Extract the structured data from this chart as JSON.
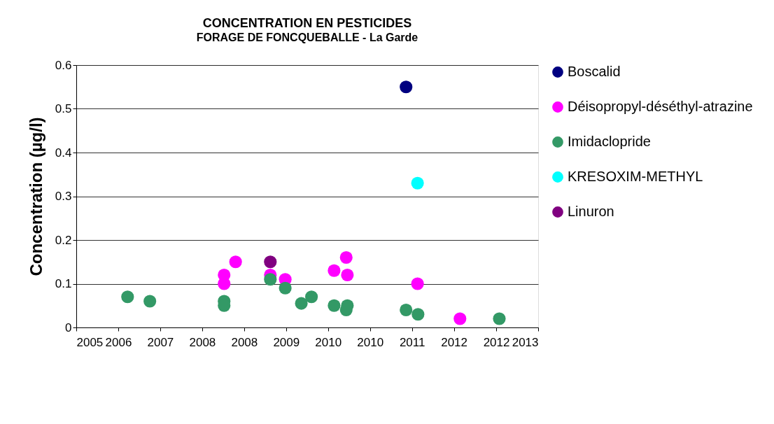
{
  "chart_data": {
    "type": "scatter",
    "title": "CONCENTRATION EN PESTICIDES",
    "subtitle": "FORAGE DE FONCQUEBALLE - La Garde",
    "ylabel": "Concentration (µg/l)",
    "xlim": [
      "2005-11-25",
      "2013-08-13"
    ],
    "xticks": [
      {
        "value": "2005-11-25",
        "label": "2005"
      },
      {
        "value": "2006-08-08",
        "label": "2006"
      },
      {
        "value": "2007-04-21",
        "label": "2007"
      },
      {
        "value": "2008-01-02",
        "label": "2008"
      },
      {
        "value": "2008-09-14",
        "label": "2008"
      },
      {
        "value": "2009-05-28",
        "label": "2009"
      },
      {
        "value": "2010-02-08",
        "label": "2010"
      },
      {
        "value": "2010-10-22",
        "label": "2010"
      },
      {
        "value": "2011-07-05",
        "label": "2011"
      },
      {
        "value": "2012-03-17",
        "label": "2012"
      },
      {
        "value": "2012-11-30",
        "label": "2012"
      },
      {
        "value": "2013-08-13",
        "label": "2013"
      }
    ],
    "ylim": [
      0,
      0.6
    ],
    "yticks": [
      0,
      0.1,
      0.2,
      0.3,
      0.4,
      0.5,
      0.6
    ],
    "grid": "y",
    "legend": "right",
    "marker": "circle",
    "series": [
      {
        "name": "Boscalid",
        "color": "#000080",
        "x": [
          "2011-05-30"
        ],
        "values": [
          0.55
        ]
      },
      {
        "name": "Déisopropyl-déséthyl-atrazine",
        "color": "#ff00ff",
        "x": [
          "2008-05-15",
          "2008-05-15",
          "2008-07-24",
          "2009-02-21",
          "2009-05-23",
          "2010-03-17",
          "2010-05-30",
          "2010-06-06",
          "2011-08-08",
          "2012-04-23"
        ],
        "values": [
          0.12,
          0.1,
          0.15,
          0.12,
          0.11,
          0.13,
          0.16,
          0.12,
          0.1,
          0.02
        ]
      },
      {
        "name": "Imidaclopride",
        "color": "#339966",
        "x": [
          "2006-10-04",
          "2007-02-17",
          "2008-05-15",
          "2008-05-15",
          "2009-02-21",
          "2009-05-23",
          "2009-08-29",
          "2009-10-30",
          "2010-03-17",
          "2010-06-06",
          "2010-05-30",
          "2011-05-30",
          "2011-08-11",
          "2012-12-19"
        ],
        "values": [
          0.07,
          0.06,
          0.06,
          0.05,
          0.11,
          0.09,
          0.055,
          0.07,
          0.05,
          0.05,
          0.04,
          0.04,
          0.03,
          0.02
        ]
      },
      {
        "name": "KRESOXIM-METHYL",
        "color": "#00ffff",
        "x": [
          "2011-08-08"
        ],
        "values": [
          0.33
        ]
      },
      {
        "name": "Linuron",
        "color": "#800080",
        "x": [
          "2009-02-21"
        ],
        "values": [
          0.15
        ]
      }
    ]
  }
}
